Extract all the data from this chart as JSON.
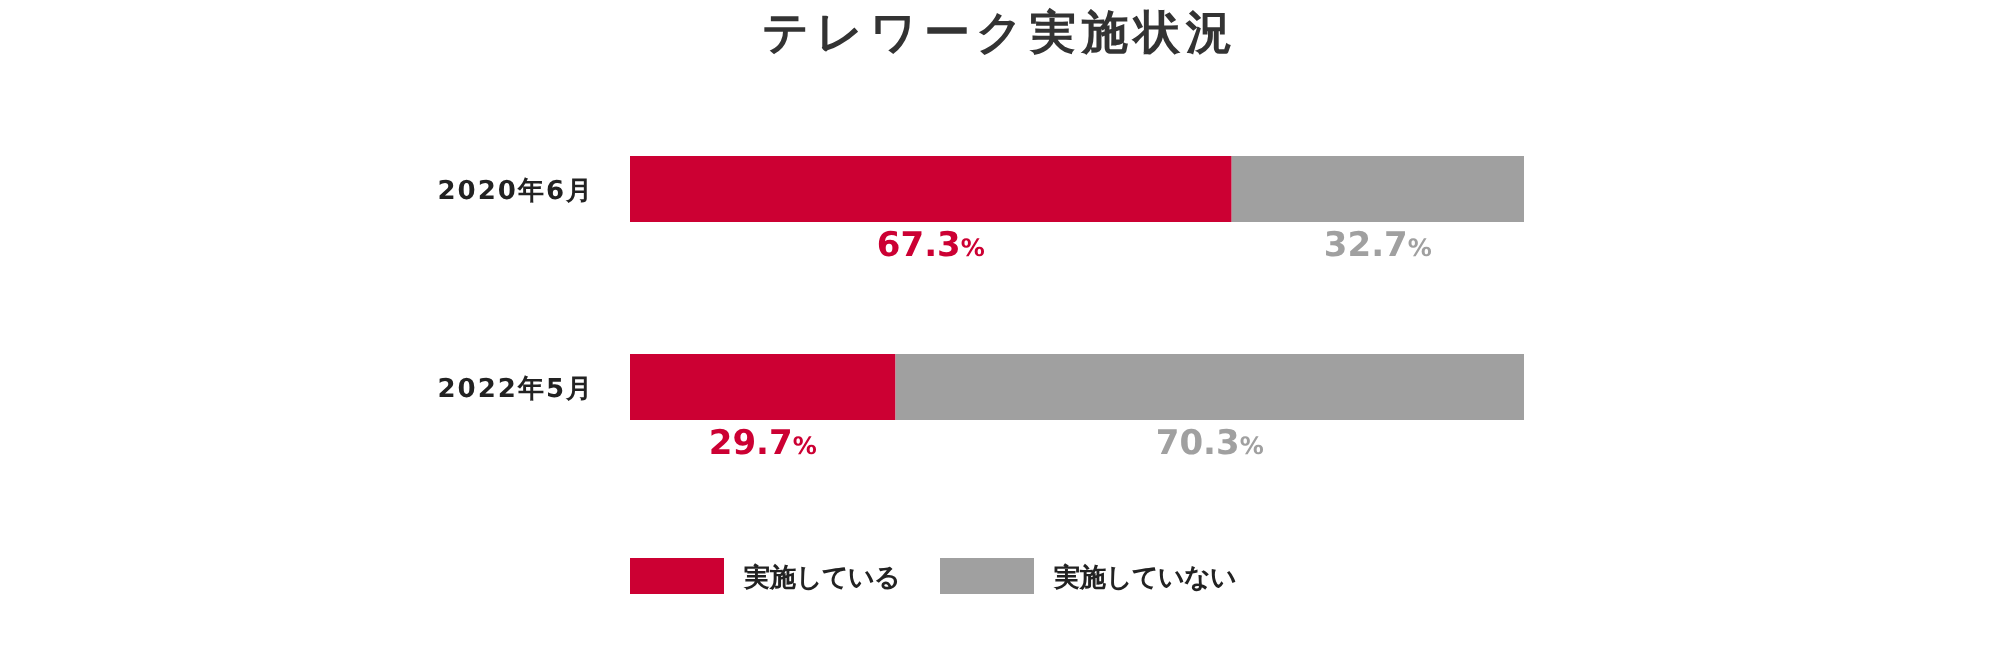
{
  "chart_data": {
    "type": "bar",
    "orientation": "horizontal",
    "stacked": true,
    "title": "テレワーク実施状況",
    "categories": [
      "2020年6月",
      "2022年5月"
    ],
    "series": [
      {
        "name": "実施している",
        "color": "#cc0033",
        "values": [
          67.3,
          29.7
        ],
        "value_labels": [
          "67.3%",
          "29.7%"
        ]
      },
      {
        "name": "実施していない",
        "color": "#a0a0a0",
        "values": [
          32.7,
          70.3
        ],
        "value_labels": [
          "32.7%",
          "70.3%"
        ]
      }
    ],
    "legend": "bottom"
  }
}
